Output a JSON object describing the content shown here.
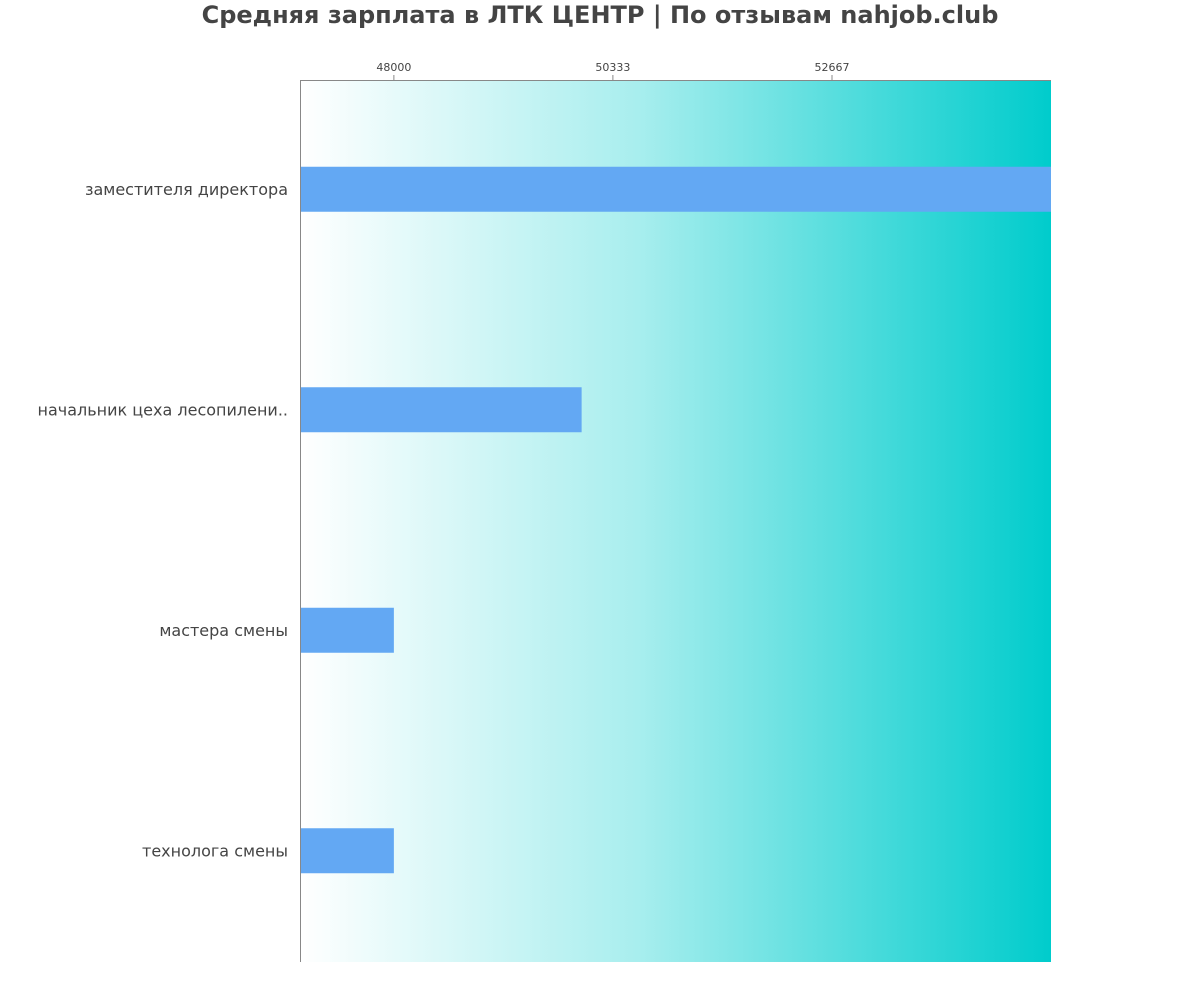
{
  "chart_data": {
    "type": "bar",
    "orientation": "horizontal",
    "title": "Средняя зарплата в ЛТК ЦЕНТР | По отзывам nahjob.club",
    "xlabel": "",
    "ylabel": "",
    "categories": [
      "заместителя директора",
      "начальник цеха лесопилени..",
      "мастера смены",
      "технолога смены"
    ],
    "values": [
      55000,
      50000,
      48000,
      48000
    ],
    "xlim": [
      47000,
      55000
    ],
    "x_ticks": [
      48000,
      50333,
      52667
    ],
    "x_axis_position": "top",
    "grid": false,
    "legend": "none",
    "colors": {
      "bar": "#63a8f3",
      "background_start": "#ffffff",
      "background_end": "#00cccc",
      "title": "#444444",
      "label": "#444444",
      "axis": "#888888"
    }
  }
}
